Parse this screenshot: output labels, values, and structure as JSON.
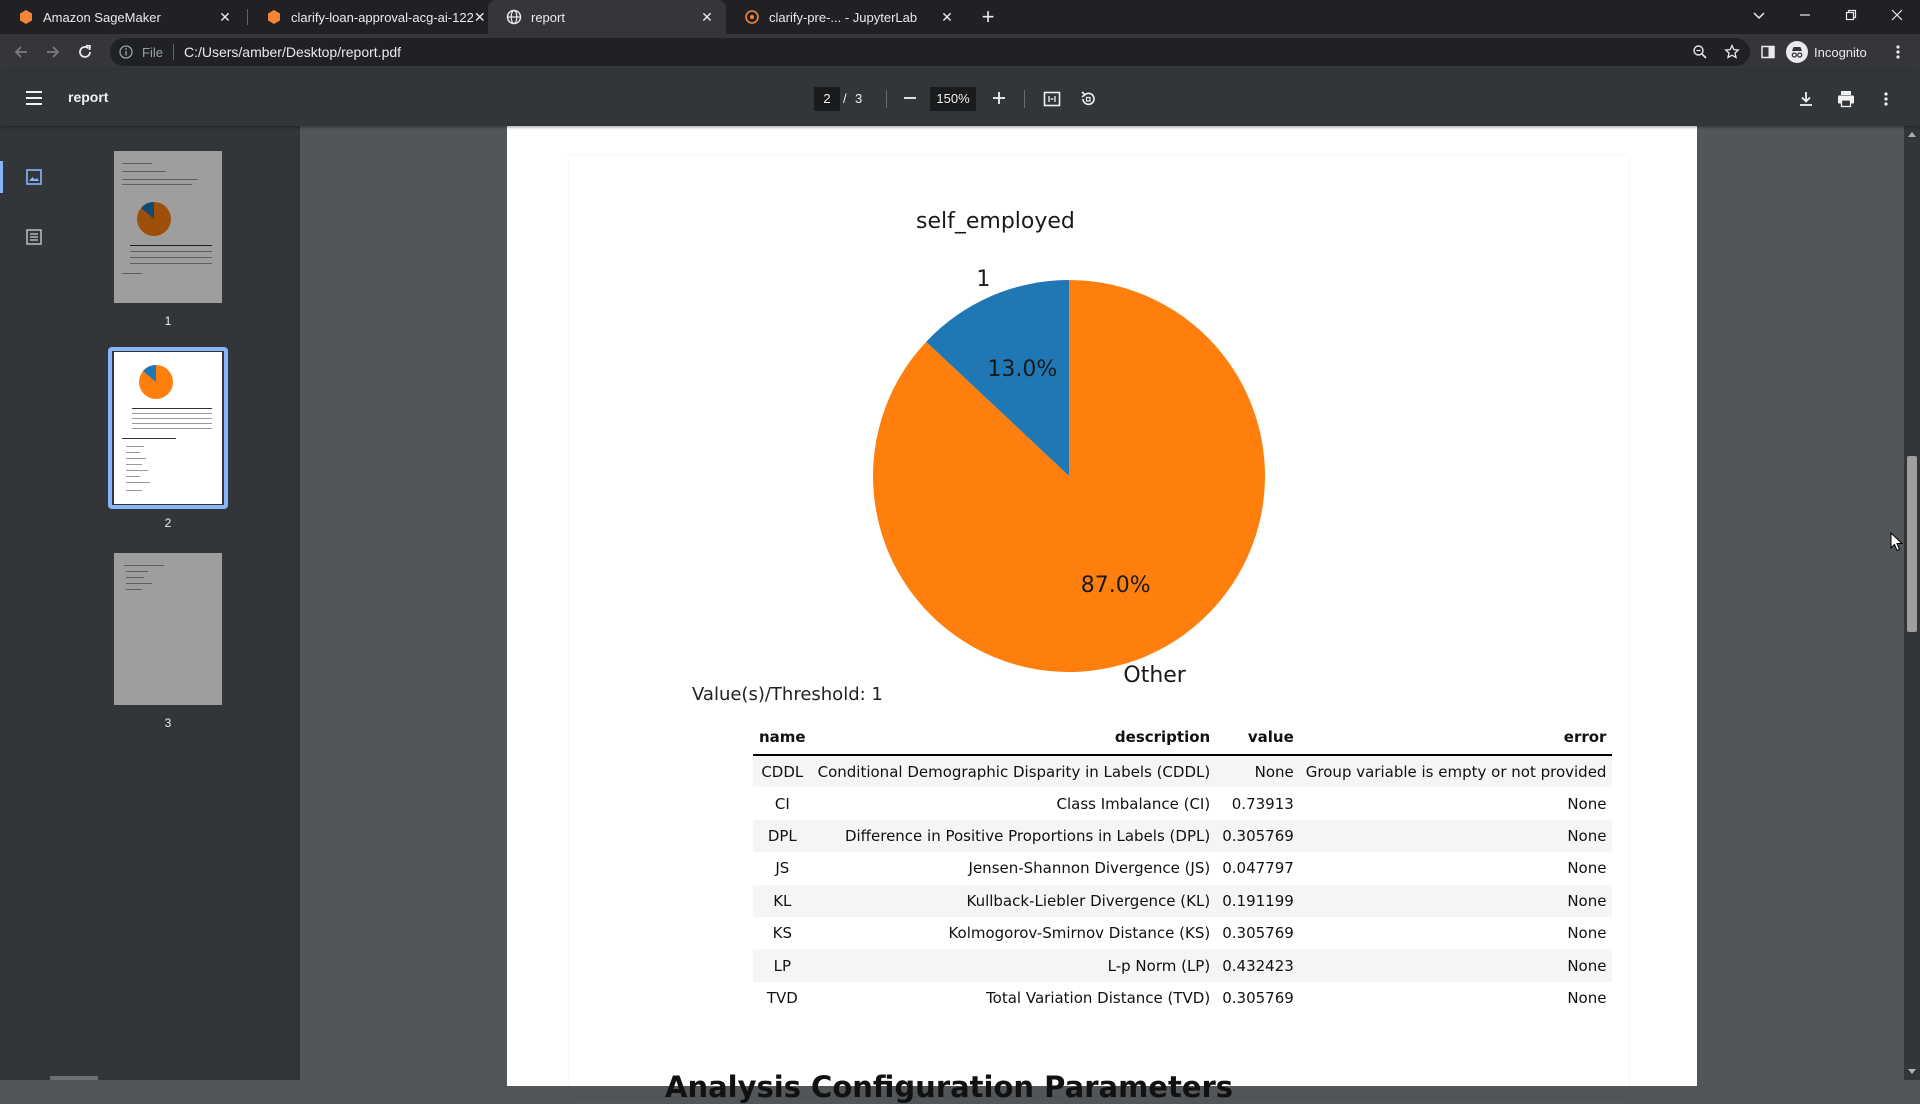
{
  "browser": {
    "tabs": [
      {
        "title": "Amazon SageMaker",
        "icon": "sagemaker-icon",
        "active": false
      },
      {
        "title": "clarify-loan-approval-acg-ai-122",
        "icon": "sagemaker-icon",
        "active": false
      },
      {
        "title": "report",
        "icon": "globe-icon",
        "active": true
      },
      {
        "title": "clarify-pre-... - JupyterLab",
        "icon": "jupyter-icon",
        "active": false
      }
    ],
    "address": {
      "scheme_label": "File",
      "url": "C:/Users/amber/Desktop/report.pdf"
    },
    "profile_label": "Incognito"
  },
  "pdf_viewer": {
    "title": "report",
    "current_page": "2",
    "page_separator": "/",
    "total_pages": "3",
    "zoom": "150%",
    "thumbnails": [
      {
        "number": "1",
        "selected": false
      },
      {
        "number": "2",
        "selected": true
      },
      {
        "number": "3",
        "selected": false
      }
    ]
  },
  "document": {
    "pie_threshold_text": "Value(s)/Threshold: 1",
    "table": {
      "headers": {
        "name": "name",
        "description": "description",
        "value": "value",
        "error": "error"
      },
      "rows": [
        {
          "name": "CDDL",
          "description": "Conditional Demographic Disparity in Labels (CDDL)",
          "value": "None",
          "error": "Group variable is empty or not provided"
        },
        {
          "name": "CI",
          "description": "Class Imbalance (CI)",
          "value": "0.73913",
          "error": "None"
        },
        {
          "name": "DPL",
          "description": "Difference in Positive Proportions in Labels (DPL)",
          "value": "0.305769",
          "error": "None"
        },
        {
          "name": "JS",
          "description": "Jensen-Shannon Divergence (JS)",
          "value": "0.047797",
          "error": "None"
        },
        {
          "name": "KL",
          "description": "Kullback-Liebler Divergence (KL)",
          "value": "0.191199",
          "error": "None"
        },
        {
          "name": "KS",
          "description": "Kolmogorov-Smirnov Distance (KS)",
          "value": "0.305769",
          "error": "None"
        },
        {
          "name": "LP",
          "description": "L-p Norm (LP)",
          "value": "0.432423",
          "error": "None"
        },
        {
          "name": "TVD",
          "description": "Total Variation Distance (TVD)",
          "value": "0.305769",
          "error": "None"
        }
      ]
    },
    "next_section_heading": "Analysis Configuration Parameters"
  },
  "chart_data": {
    "type": "pie",
    "title": "self_employed",
    "categories": [
      "1",
      "Other"
    ],
    "values": [
      13.0,
      87.0
    ],
    "value_labels": [
      "13.0%",
      "87.0%"
    ],
    "colors": [
      "#1f77b4",
      "#ff7f0e"
    ],
    "start_angle_deg": 90,
    "direction": "counterclockwise"
  },
  "colors": {
    "tab_strip": "#202124",
    "toolbar": "#35363a",
    "pdf_toolbar": "#323639",
    "viewer_background": "#525659",
    "accent": "#8ab4f8"
  }
}
